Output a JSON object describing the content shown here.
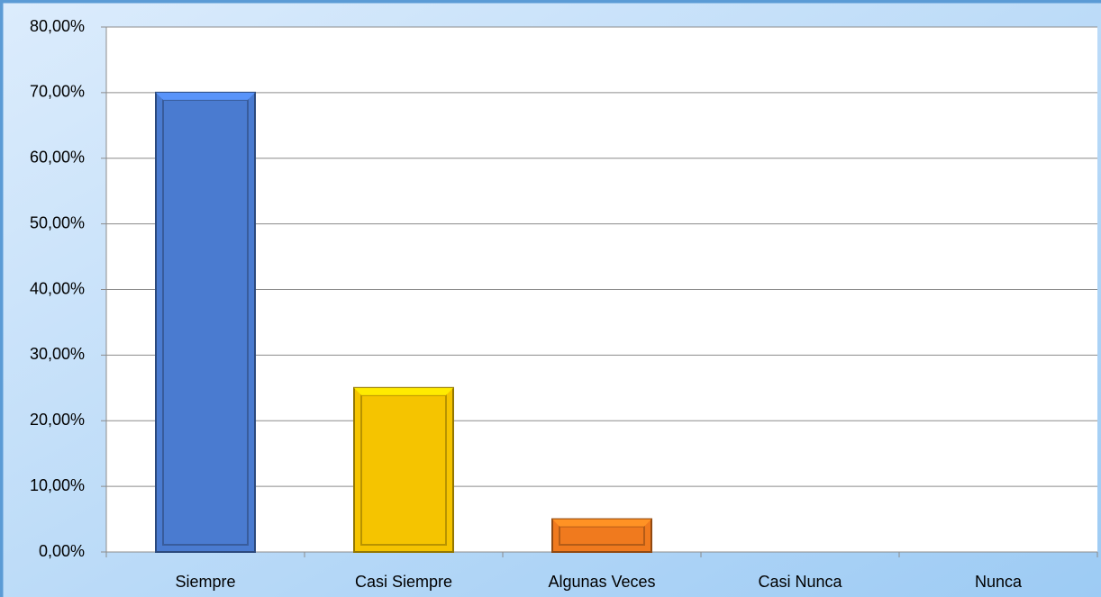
{
  "chart_data": {
    "type": "bar",
    "categories": [
      "Siempre",
      "Casi Siempre",
      "Algunas Veces",
      "Casi Nunca",
      "Nunca"
    ],
    "values": [
      70,
      25,
      5,
      0,
      0
    ],
    "colors": [
      "#4a7bd0",
      "#f5c400",
      "#f07a1e"
    ],
    "ylim": [
      0,
      80
    ],
    "yticks": [
      {
        "value": 0,
        "label": "0,00%"
      },
      {
        "value": 10,
        "label": "10,00%"
      },
      {
        "value": 20,
        "label": "20,00%"
      },
      {
        "value": 30,
        "label": "30,00%"
      },
      {
        "value": 40,
        "label": "40,00%"
      },
      {
        "value": 50,
        "label": "50,00%"
      },
      {
        "value": 60,
        "label": "60,00%"
      },
      {
        "value": 70,
        "label": "70,00%"
      },
      {
        "value": 80,
        "label": "80,00%"
      }
    ],
    "grid": true
  }
}
